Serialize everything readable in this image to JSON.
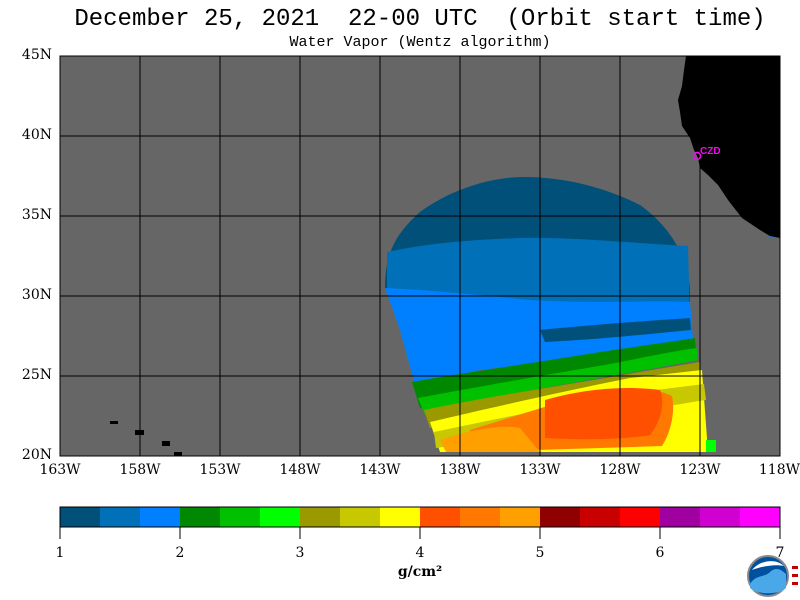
{
  "header": {
    "title": "December 25, 2021  22-00 UTC  (Orbit start time)",
    "subtitle": "Water Vapor (Wentz algorithm)"
  },
  "map": {
    "lat_labels": [
      "45N",
      "40N",
      "35N",
      "30N",
      "25N",
      "20N"
    ],
    "lon_labels": [
      "163W",
      "158W",
      "153W",
      "148W",
      "143W",
      "138W",
      "133W",
      "128W",
      "123W",
      "118W"
    ],
    "station_label": "CZD",
    "colors": {
      "land": "#000000",
      "no_data": "#666666",
      "grid": "#000000",
      "station": "#ff00ff"
    }
  },
  "colorbar": {
    "colors": [
      "#00507a",
      "#0070b8",
      "#0080ff",
      "#008800",
      "#00c000",
      "#00ff00",
      "#9a9a00",
      "#c8c800",
      "#ffff00",
      "#ff5000",
      "#ff7800",
      "#ffa000",
      "#900000",
      "#c80000",
      "#ff0000",
      "#a000a0",
      "#d000d0",
      "#ff00ff"
    ],
    "ticks": [
      "1",
      "2",
      "3",
      "4",
      "5",
      "6",
      "7"
    ],
    "unit": "g/cm²"
  },
  "logo": {
    "name": "NOAA"
  }
}
